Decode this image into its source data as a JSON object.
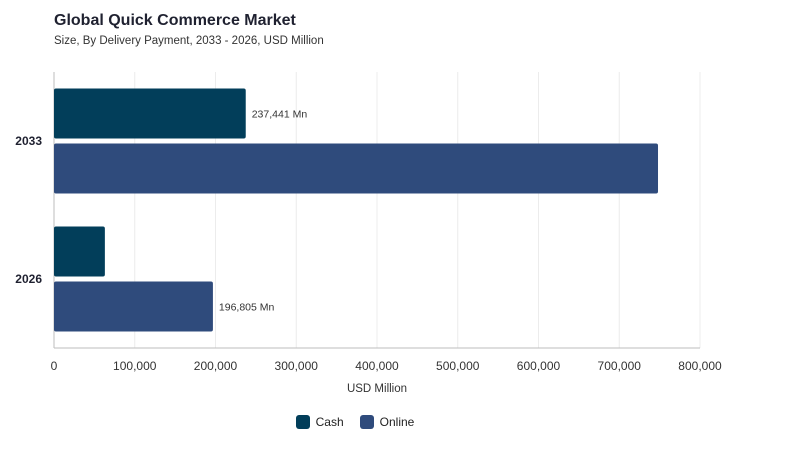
{
  "header": {
    "title": "Global Quick Commerce Market",
    "subtitle": "Size, By Delivery Payment, 2033 - 2026, USD Million"
  },
  "colors": {
    "cash": "#023e5a",
    "online": "#2f4b7c",
    "grid": "#ececec",
    "axis": "#bdbdbd"
  },
  "chart_data": {
    "type": "bar",
    "orientation": "horizontal",
    "title": "Global Quick Commerce Market",
    "subtitle": "Size, By Delivery Payment, 2033 - 2026, USD Million",
    "categories": [
      "2033",
      "2026"
    ],
    "series": [
      {
        "name": "Cash",
        "values": [
          237441,
          63000
        ]
      },
      {
        "name": "Online",
        "values": [
          748000,
          196805
        ]
      }
    ],
    "data_labels": [
      {
        "category": "2033",
        "series": "Cash",
        "text": "237,441 Mn"
      },
      {
        "category": "2026",
        "series": "Online",
        "text": "196,805 Mn"
      }
    ],
    "xlabel": "USD Million",
    "ylabel": "",
    "xlim": [
      0,
      800000
    ],
    "x_ticks": [
      0,
      100000,
      200000,
      300000,
      400000,
      500000,
      600000,
      700000,
      800000
    ],
    "x_tick_labels": [
      "0",
      "100,000",
      "200,000",
      "300,000",
      "400,000",
      "500,000",
      "600,000",
      "700,000",
      "800,000"
    ],
    "grid": true,
    "legend_position": "bottom"
  }
}
